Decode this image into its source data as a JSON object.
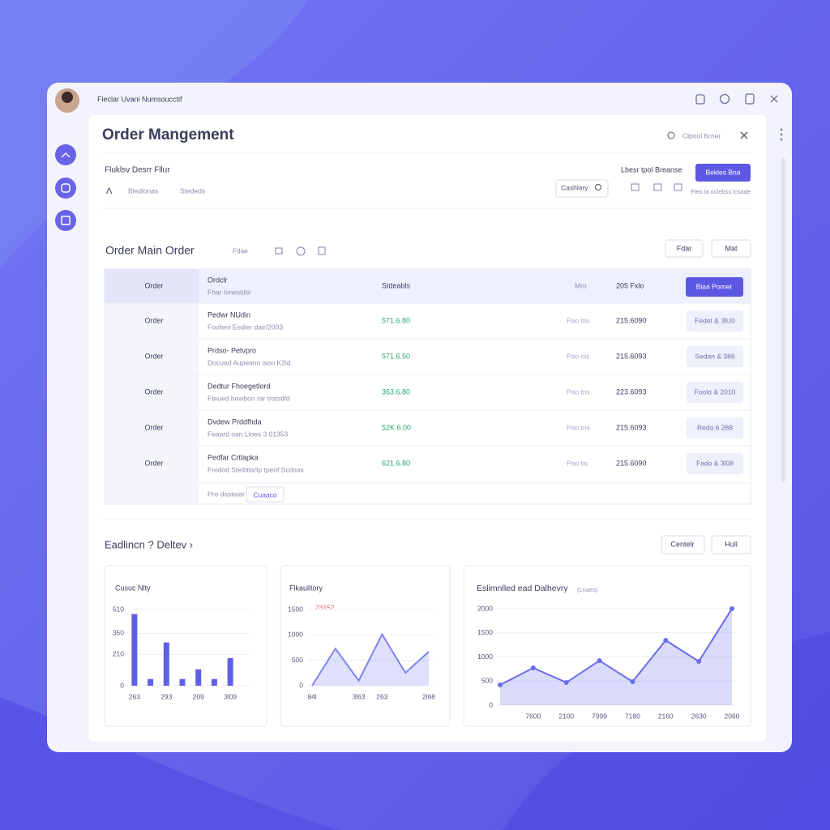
{
  "topbar": {
    "user": "Fleclar Uvani Numsoucctif"
  },
  "header": {
    "title": "Order Mangement",
    "search": "Clpoul tlcner"
  },
  "filters": {
    "heading": "Fluklsv Desrr Fllur",
    "tabs": [
      "Bledlonas",
      "Stededs"
    ],
    "dropdown": "Cashlary",
    "link": "Lbesr tpol Breanse",
    "button": "Bekles Bna",
    "note": "Fleo la oclebss lcsade"
  },
  "orders": {
    "title": "Order Main Order",
    "filter": "Ftlae",
    "buttons": [
      "Fdar",
      "Mat"
    ],
    "table": {
      "header": [
        "Order",
        "Ordclr",
        "Fhar Ivnesldtir",
        "Stdeabls",
        "Mro",
        "205 Fxlo",
        "Biaa Pomer"
      ],
      "rows": [
        [
          "Order",
          "Pedwr NUdin",
          "Foofeni Eedier dair/2003",
          "571.6.80",
          "Pao ttis",
          "215.6090",
          "Fedet & 3lU0"
        ],
        [
          "Order",
          "Prdso- Petvpro",
          "Docuad Aupeano isoo K2id",
          "571.6.50",
          "Pao nis",
          "215.6093",
          "Sedan & 386"
        ],
        [
          "Order",
          "Dedtur Fhoegetlord",
          "Fteued hewbon rar trotstlfd",
          "363.6.80",
          "Pao tns",
          "223.6093",
          "Foola & 2010"
        ],
        [
          "Order",
          "Dvdew Prddfhda",
          "Feaard oan Lloes 3 01353",
          "52K.6.00",
          "Pao tns",
          "215.6093",
          "Redo.6 288"
        ],
        [
          "Order",
          "Pedfar Crtlapka",
          "Fredod Steibtla/Ip tpeof Scdsas",
          "621.6.80",
          "Pao tis",
          "215.6090",
          "Fado & 3l08"
        ]
      ],
      "footer": [
        "Pro dasteiar",
        "Cuaaco"
      ]
    }
  },
  "delivery": {
    "title": "Eadlincn ? Deltev ›",
    "buttons": [
      "Centelr",
      "Hull"
    ]
  },
  "chart_data": [
    {
      "type": "bar",
      "title": "Cusuc Nlty",
      "categories": [
        "263",
        null,
        "293",
        null,
        "209",
        null,
        "3l09"
      ],
      "values": [
        480,
        45,
        290,
        45,
        110,
        45,
        185
      ],
      "color": "#5f5fe6",
      "ylim": [
        0,
        510
      ],
      "yticks": [
        0,
        210,
        350,
        510
      ]
    },
    {
      "type": "area",
      "title": "Flkaulitory",
      "annotation": "23152",
      "categories": [
        "84l",
        null,
        "3l63",
        "263",
        null,
        "2l68"
      ],
      "values": [
        0,
        730,
        100,
        1010,
        255,
        670
      ],
      "color": "#8083ef",
      "ylim": [
        0,
        1500
      ],
      "yticks": [
        0,
        500,
        1000,
        1500
      ]
    },
    {
      "type": "area",
      "title": "Eslimnlled ead Dalhevry",
      "subtitle": "(Lnaes)",
      "categories": [
        null,
        "7600",
        "2100",
        "7999",
        "7180",
        "2160",
        "2630",
        "2060"
      ],
      "values": [
        420,
        773,
        470,
        924,
        487,
        1345,
        908,
        2000
      ],
      "color": "#6a6deb",
      "ylim": [
        0,
        2000
      ],
      "yticks": [
        0,
        500,
        1000,
        1500,
        2000
      ],
      "markers": true
    }
  ]
}
